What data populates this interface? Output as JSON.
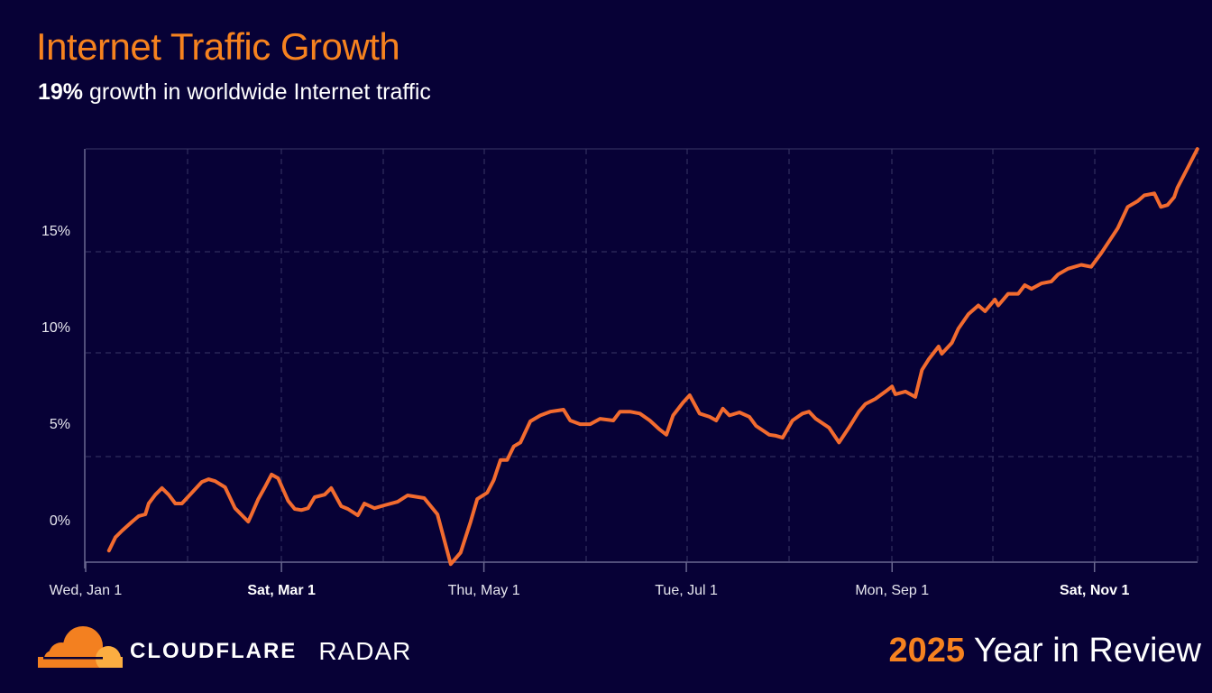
{
  "header": {
    "title": "Internet Traffic Growth",
    "subtitle_bold": "19%",
    "subtitle_rest": " growth in worldwide Internet traffic"
  },
  "footer": {
    "brand": "CLOUDFLARE",
    "product": "RADAR",
    "year": "2025",
    "review": " Year in Review"
  },
  "colors": {
    "background": "#070136",
    "line": "#f26b2f",
    "title": "#f6821f",
    "grid": "#3a3866"
  },
  "chart_data": {
    "type": "line",
    "title": "Internet Traffic Growth",
    "subtitle": "19% growth in worldwide Internet traffic",
    "xlabel": "",
    "ylabel": "",
    "x_range": [
      "2025-01-01",
      "2025-12-02"
    ],
    "ylim": [
      -2.3,
      19.2
    ],
    "y_ticks": [
      "0%",
      "5%",
      "10%",
      "15%"
    ],
    "y_tick_values": [
      0,
      5,
      10,
      15
    ],
    "x_ticks": [
      {
        "label": "Wed, Jan 1",
        "date": "2025-01-01",
        "bold": false
      },
      {
        "label": "Sat, Mar 1",
        "date": "2025-03-01",
        "bold": true
      },
      {
        "label": "Thu, May 1",
        "date": "2025-05-01",
        "bold": false
      },
      {
        "label": "Tue, Jul 1",
        "date": "2025-07-01",
        "bold": false
      },
      {
        "label": "Mon, Sep 1",
        "date": "2025-09-01",
        "bold": false
      },
      {
        "label": "Sat, Nov 1",
        "date": "2025-11-01",
        "bold": true
      }
    ],
    "grid": true,
    "series": [
      {
        "points": [
          [
            "2025-01-08",
            -1.6
          ],
          [
            "2025-01-10",
            -0.9
          ],
          [
            "2025-01-12",
            -0.56
          ],
          [
            "2025-01-15",
            -0.1
          ],
          [
            "2025-01-17",
            0.19
          ],
          [
            "2025-01-19",
            0.28
          ],
          [
            "2025-01-20",
            0.84
          ],
          [
            "2025-01-22",
            1.3
          ],
          [
            "2025-01-24",
            1.64
          ],
          [
            "2025-01-26",
            1.3
          ],
          [
            "2025-01-28",
            0.84
          ],
          [
            "2025-01-30",
            0.84
          ],
          [
            "2025-02-02",
            1.4
          ],
          [
            "2025-02-05",
            1.96
          ],
          [
            "2025-02-07",
            2.1
          ],
          [
            "2025-02-09",
            2.0
          ],
          [
            "2025-02-12",
            1.68
          ],
          [
            "2025-02-15",
            0.6
          ],
          [
            "2025-02-19",
            -0.1
          ],
          [
            "2025-02-20",
            0.28
          ],
          [
            "2025-02-22",
            1.07
          ],
          [
            "2025-02-24",
            1.68
          ],
          [
            "2025-02-26",
            2.34
          ],
          [
            "2025-02-28",
            2.15
          ],
          [
            "2025-03-03",
            0.98
          ],
          [
            "2025-03-05",
            0.56
          ],
          [
            "2025-03-07",
            0.5
          ],
          [
            "2025-03-09",
            0.6
          ],
          [
            "2025-03-11",
            1.17
          ],
          [
            "2025-03-14",
            1.3
          ],
          [
            "2025-03-16",
            1.64
          ],
          [
            "2025-03-19",
            0.7
          ],
          [
            "2025-03-21",
            0.56
          ],
          [
            "2025-03-24",
            0.23
          ],
          [
            "2025-03-26",
            0.84
          ],
          [
            "2025-03-29",
            0.6
          ],
          [
            "2025-04-01",
            0.75
          ],
          [
            "2025-04-05",
            0.93
          ],
          [
            "2025-04-08",
            1.26
          ],
          [
            "2025-04-13",
            1.12
          ],
          [
            "2025-04-17",
            0.28
          ],
          [
            "2025-04-19",
            -1.0
          ],
          [
            "2025-04-21",
            -2.3
          ],
          [
            "2025-04-24",
            -1.7
          ],
          [
            "2025-04-27",
            -0.1
          ],
          [
            "2025-04-29",
            1.07
          ],
          [
            "2025-05-02",
            1.4
          ],
          [
            "2025-05-04",
            2.06
          ],
          [
            "2025-05-06",
            3.1
          ],
          [
            "2025-05-08",
            3.1
          ],
          [
            "2025-05-10",
            3.8
          ],
          [
            "2025-05-12",
            4.0
          ],
          [
            "2025-05-15",
            5.1
          ],
          [
            "2025-05-18",
            5.4
          ],
          [
            "2025-05-21",
            5.6
          ],
          [
            "2025-05-25",
            5.7
          ],
          [
            "2025-05-27",
            5.14
          ],
          [
            "2025-05-30",
            4.95
          ],
          [
            "2025-06-02",
            4.95
          ],
          [
            "2025-06-05",
            5.23
          ],
          [
            "2025-06-09",
            5.14
          ],
          [
            "2025-06-11",
            5.6
          ],
          [
            "2025-06-14",
            5.6
          ],
          [
            "2025-06-17",
            5.5
          ],
          [
            "2025-06-20",
            5.14
          ],
          [
            "2025-06-23",
            4.67
          ],
          [
            "2025-06-25",
            4.4
          ],
          [
            "2025-06-27",
            5.4
          ],
          [
            "2025-06-30",
            6.07
          ],
          [
            "2025-07-02",
            6.45
          ],
          [
            "2025-07-05",
            5.5
          ],
          [
            "2025-07-08",
            5.33
          ],
          [
            "2025-07-10",
            5.14
          ],
          [
            "2025-07-12",
            5.75
          ],
          [
            "2025-07-14",
            5.4
          ],
          [
            "2025-07-17",
            5.56
          ],
          [
            "2025-07-20",
            5.33
          ],
          [
            "2025-07-22",
            4.86
          ],
          [
            "2025-07-26",
            4.4
          ],
          [
            "2025-07-28",
            4.35
          ],
          [
            "2025-07-30",
            4.25
          ],
          [
            "2025-08-02",
            5.14
          ],
          [
            "2025-08-05",
            5.5
          ],
          [
            "2025-08-07",
            5.6
          ],
          [
            "2025-08-09",
            5.23
          ],
          [
            "2025-08-13",
            4.77
          ],
          [
            "2025-08-16",
            4.0
          ],
          [
            "2025-08-19",
            4.77
          ],
          [
            "2025-08-22",
            5.6
          ],
          [
            "2025-08-24",
            6.0
          ],
          [
            "2025-08-27",
            6.26
          ],
          [
            "2025-08-30",
            6.64
          ],
          [
            "2025-09-01",
            6.9
          ],
          [
            "2025-09-02",
            6.5
          ],
          [
            "2025-09-05",
            6.64
          ],
          [
            "2025-09-08",
            6.36
          ],
          [
            "2025-09-10",
            7.76
          ],
          [
            "2025-09-12",
            8.3
          ],
          [
            "2025-09-15",
            8.97
          ],
          [
            "2025-09-16",
            8.6
          ],
          [
            "2025-09-19",
            9.16
          ],
          [
            "2025-09-21",
            9.9
          ],
          [
            "2025-09-24",
            10.65
          ],
          [
            "2025-09-27",
            11.1
          ],
          [
            "2025-09-29",
            10.8
          ],
          [
            "2025-10-02",
            11.4
          ],
          [
            "2025-10-03",
            11.1
          ],
          [
            "2025-10-06",
            11.7
          ],
          [
            "2025-10-09",
            11.7
          ],
          [
            "2025-10-11",
            12.15
          ],
          [
            "2025-10-13",
            11.96
          ],
          [
            "2025-10-16",
            12.24
          ],
          [
            "2025-10-19",
            12.34
          ],
          [
            "2025-10-21",
            12.7
          ],
          [
            "2025-10-24",
            13.0
          ],
          [
            "2025-10-28",
            13.2
          ],
          [
            "2025-10-31",
            13.1
          ],
          [
            "2025-11-03",
            13.8
          ],
          [
            "2025-11-08",
            15.1
          ],
          [
            "2025-11-11",
            16.2
          ],
          [
            "2025-11-14",
            16.5
          ],
          [
            "2025-11-16",
            16.8
          ],
          [
            "2025-11-19",
            16.9
          ],
          [
            "2025-11-21",
            16.2
          ],
          [
            "2025-11-23",
            16.3
          ],
          [
            "2025-11-25",
            16.7
          ],
          [
            "2025-11-26",
            17.2
          ],
          [
            "2025-11-29",
            18.2
          ],
          [
            "2025-12-02",
            19.2
          ]
        ]
      }
    ]
  }
}
